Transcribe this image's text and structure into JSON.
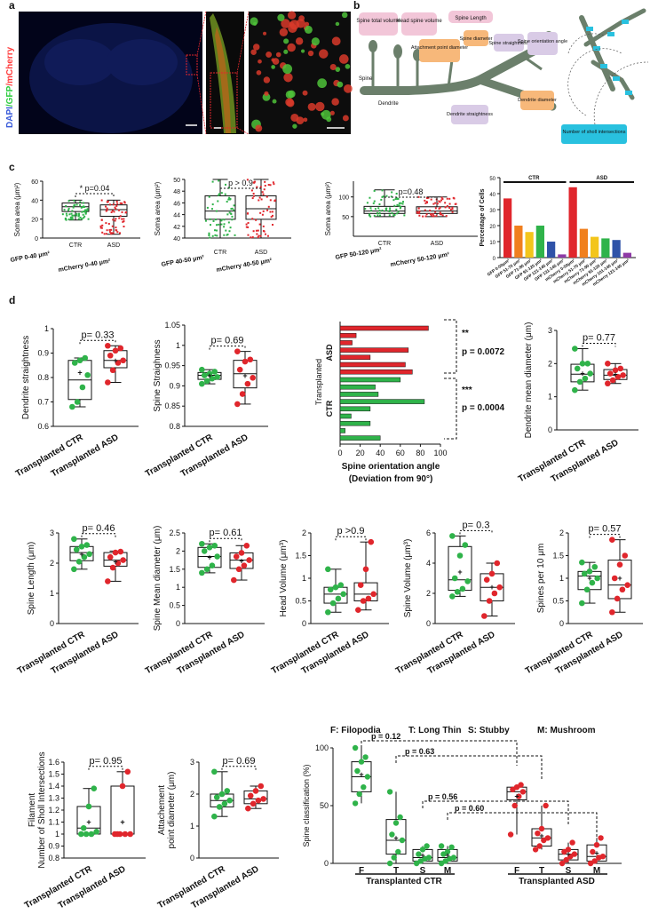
{
  "panel_labels": [
    "a",
    "b",
    "c",
    "d"
  ],
  "panel_a": {
    "channel_label": {
      "dapi": "DAPI",
      "gfp": "/GFP",
      "mcherry": "/mCherry"
    },
    "colors": {
      "dapi": "#3a5bd9",
      "gfp": "#2ecc40",
      "mcherry": "#ff3b3b"
    }
  },
  "panel_b": {
    "labels": {
      "spine_total_volume": "Spine total volume",
      "head_spine_volume": "Head spine volume",
      "spine_length": "Spine Length",
      "attachment_point_diameter": "Attachment point diameter",
      "spine_diameter": "Spine diameter",
      "spine_straightness": "Spine straightness",
      "spine_orientation_angle": "Spine orientation angle",
      "spine": "Spine",
      "dendrite": "Dendrite",
      "dendrite_diameter": "Dendrite diameter",
      "dendrite_straightness": "Dendrite straightness",
      "sholl": "Number of sholl intersections"
    },
    "colors": {
      "pink": "#f2c6d8",
      "purple": "#d9cbe6",
      "orange": "#f7b87a",
      "cyan": "#29c1df",
      "dendrite": "#6b7f6b"
    }
  },
  "colors": {
    "ctr": "#2fb34a",
    "asd": "#e0262c",
    "filopodia": "#8e3aa6",
    "longthin": "#2f52a8",
    "stubby": "#e0262c",
    "mushroom": "#2fb34a"
  },
  "chart_data": [
    {
      "id": "c1",
      "type": "box",
      "ylabel": "Soma area (μm²)",
      "ylim": [
        0,
        60
      ],
      "yticks": [
        0,
        20,
        40,
        60
      ],
      "categories": [
        "CTR",
        "ASD"
      ],
      "xlabels": [
        "GFP 0-40 μm²",
        "mCherry  0-40 μm²"
      ],
      "pvalue": "* p=0.04",
      "boxes": [
        {
          "q1": 28,
          "med": 33,
          "q3": 37,
          "min": 19,
          "max": 40,
          "mean": null
        },
        {
          "q1": 23,
          "med": 30,
          "q3": 35,
          "min": 4,
          "max": 40,
          "mean": null
        }
      ]
    },
    {
      "id": "c2",
      "type": "box",
      "ylabel": "Soma area (μm²)",
      "ylim": [
        40,
        50
      ],
      "yticks": [
        40,
        42,
        44,
        46,
        48,
        50
      ],
      "categories": [
        "CTR",
        "ASD"
      ],
      "xlabels": [
        "GFP 40-50 μm²",
        "mCherry 40-50 μm²"
      ],
      "pvalue": "p > 0.9",
      "boxes": [
        {
          "q1": 43.2,
          "med": 44.6,
          "q3": 47.2,
          "min": 40,
          "max": 50,
          "mean": null
        },
        {
          "q1": 43.2,
          "med": 45,
          "q3": 47.2,
          "min": 40,
          "max": 50,
          "mean": null
        }
      ]
    },
    {
      "id": "c3",
      "type": "box",
      "ylabel": "Soma area (μm²)",
      "ylim": [
        0,
        140
      ],
      "yticks": [
        50,
        100
      ],
      "categories": [
        "CTR",
        "ASD"
      ],
      "xlabels": [
        "GFP 50-120 μm²",
        "mCherry 50-120 μm²"
      ],
      "pvalue": "p=0.48",
      "boxes": [
        {
          "q1": 58,
          "med": 64,
          "q3": 76,
          "min": 50,
          "max": 118,
          "mean": null
        },
        {
          "q1": 58,
          "med": 64,
          "q3": 75,
          "min": 50,
          "max": 100,
          "mean": null
        }
      ]
    },
    {
      "id": "c4",
      "type": "bar",
      "ylabel": "Percentage of Cells",
      "ylim": [
        0,
        50
      ],
      "yticks": [
        0,
        10,
        20,
        30,
        40,
        50
      ],
      "groups": [
        "CTR",
        "ASD"
      ],
      "categories": [
        "GFP 0-50μm²",
        "GFP 51-70 μm²",
        "GFP 71-90 μm²",
        "GFP 91-120 μm²",
        "GFP 121-145 μm²",
        "GFP 131-145 μm²",
        "mCherry 0-50μm²",
        "mCherry 51-70 μm²",
        "mCherry 71-90 μm²",
        "mCherry 91-120 μm²",
        "mCherry 101-140 μm²",
        "mCherry 121-140 μm²"
      ],
      "values": [
        37,
        20,
        16,
        20,
        10,
        2,
        44,
        18,
        13,
        12,
        11,
        3
      ],
      "bar_colors": [
        "#e0262c",
        "#f07f1e",
        "#f3c51b",
        "#2fb34a",
        "#2f52a8",
        "#8e3aa6",
        "#e0262c",
        "#f07f1e",
        "#f3c51b",
        "#2fb34a",
        "#2f52a8",
        "#8e3aa6"
      ]
    },
    {
      "id": "d1",
      "type": "box",
      "ylabel": "Dendrite straightness",
      "ylim": [
        0.6,
        1.0
      ],
      "yticks": [
        0.6,
        0.7,
        0.8,
        0.9,
        1.0
      ],
      "categories": [
        "Transplanted CTR",
        "Transplanted ASD"
      ],
      "pvalue": "p= 0.33",
      "boxes": [
        {
          "q1": 0.71,
          "med": 0.79,
          "q3": 0.87,
          "min": 0.68,
          "max": 0.88,
          "mean": 0.82,
          "points": [
            0.68,
            0.7,
            0.76,
            0.81,
            0.86,
            0.87,
            0.88
          ]
        },
        {
          "q1": 0.84,
          "med": 0.87,
          "q3": 0.91,
          "min": 0.78,
          "max": 0.93,
          "mean": 0.87,
          "points": [
            0.78,
            0.83,
            0.86,
            0.87,
            0.89,
            0.91,
            0.92,
            0.93
          ]
        }
      ]
    },
    {
      "id": "d2",
      "type": "box",
      "ylabel": "Spine Straighness",
      "ylim": [
        0.8,
        1.05
      ],
      "yticks": [
        0.8,
        0.85,
        0.9,
        0.95,
        1.0,
        1.05
      ],
      "categories": [
        "Transplanted CTR",
        "Transplanted ASD"
      ],
      "pvalue": "p= 0.69",
      "boxes": [
        {
          "q1": 0.916,
          "med": 0.926,
          "q3": 0.933,
          "min": 0.905,
          "max": 0.94,
          "mean": 0.925,
          "points": [
            0.905,
            0.912,
            0.918,
            0.922,
            0.926,
            0.93,
            0.935,
            0.94
          ]
        },
        {
          "q1": 0.895,
          "med": 0.93,
          "q3": 0.963,
          "min": 0.855,
          "max": 0.985,
          "mean": 0.925,
          "points": [
            0.855,
            0.88,
            0.905,
            0.92,
            0.94,
            0.96,
            0.965,
            0.985
          ]
        }
      ]
    },
    {
      "id": "d3",
      "type": "hbar",
      "xlabel": "Spine orientation angle",
      "xlabel2": "(Deviation from 90°)",
      "ylabel": "Transplanted",
      "xlim": [
        0,
        100
      ],
      "xticks": [
        0,
        20,
        40,
        60,
        80,
        100
      ],
      "groups": [
        "ASD",
        "CTR"
      ],
      "asd_values": [
        88,
        16,
        12,
        68,
        30,
        65,
        72
      ],
      "ctr_values": [
        60,
        35,
        38,
        84,
        30,
        11,
        30,
        5,
        40
      ],
      "stars": [
        "**",
        "***"
      ],
      "pvalues": [
        "p = 0.0072",
        "p = 0.0004"
      ]
    },
    {
      "id": "d4",
      "type": "box",
      "ylabel": "Dendrite mean diameter (μm)",
      "ylim": [
        0,
        3
      ],
      "yticks": [
        0,
        1,
        2,
        3
      ],
      "categories": [
        "Transplanted CTR",
        "Transplanted ASD"
      ],
      "pvalue": "p= 0.77",
      "boxes": [
        {
          "q1": 1.45,
          "med": 1.68,
          "q3": 1.98,
          "min": 1.2,
          "max": 2.45,
          "mean": 1.7,
          "points": [
            1.2,
            1.45,
            1.55,
            1.7,
            1.85,
            2.0,
            2.0,
            2.45
          ]
        },
        {
          "q1": 1.52,
          "med": 1.65,
          "q3": 1.82,
          "min": 1.4,
          "max": 2.0,
          "mean": 1.68,
          "points": [
            1.4,
            1.5,
            1.6,
            1.65,
            1.7,
            1.8,
            1.85,
            2.0
          ]
        }
      ]
    },
    {
      "id": "e1",
      "type": "box",
      "ylabel": "Spine Length (μm)",
      "ylim": [
        0,
        3
      ],
      "yticks": [
        0,
        1,
        2,
        3
      ],
      "categories": [
        "Transplanted CTR",
        "Transplanted ASD"
      ],
      "pvalue": "p= 0.46",
      "boxes": [
        {
          "q1": 2.08,
          "med": 2.35,
          "q3": 2.55,
          "min": 1.8,
          "max": 2.8,
          "mean": 2.3,
          "points": [
            1.8,
            2.05,
            2.2,
            2.3,
            2.45,
            2.55,
            2.6,
            2.8
          ]
        },
        {
          "q1": 1.9,
          "med": 2.1,
          "q3": 2.35,
          "min": 1.4,
          "max": 2.4,
          "mean": 2.05,
          "points": [
            1.4,
            1.85,
            2.0,
            2.1,
            2.2,
            2.35,
            2.38
          ]
        }
      ]
    },
    {
      "id": "e2",
      "type": "box",
      "ylabel": "Spine Mean diameter (μm)",
      "ylim": [
        0,
        2.5
      ],
      "yticks": [
        0.0,
        0.5,
        1.0,
        1.5,
        2.0,
        2.5
      ],
      "categories": [
        "Transplanted CTR",
        "Transplanted ASD"
      ],
      "pvalue": "p= 0.61",
      "boxes": [
        {
          "q1": 1.55,
          "med": 1.85,
          "q3": 2.1,
          "min": 1.4,
          "max": 2.2,
          "mean": 1.82,
          "points": [
            1.4,
            1.5,
            1.6,
            1.85,
            2.0,
            2.1,
            2.15,
            2.2
          ]
        },
        {
          "q1": 1.52,
          "med": 1.75,
          "q3": 1.95,
          "min": 1.2,
          "max": 2.15,
          "mean": 1.73,
          "points": [
            1.2,
            1.5,
            1.6,
            1.75,
            1.85,
            1.95,
            2.15
          ]
        }
      ]
    },
    {
      "id": "e3",
      "type": "box",
      "ylabel": "Head Volume (μm³)",
      "ylim": [
        0,
        2.0
      ],
      "yticks": [
        0.0,
        0.5,
        1.0,
        1.5,
        2.0
      ],
      "categories": [
        "Transplanted CTR",
        "Transplanted ASD"
      ],
      "pvalue": "p >0.9",
      "boxes": [
        {
          "q1": 0.45,
          "med": 0.65,
          "q3": 0.8,
          "min": 0.25,
          "max": 1.2,
          "mean": 0.65,
          "points": [
            0.25,
            0.45,
            0.55,
            0.65,
            0.75,
            0.8,
            0.85,
            1.2
          ]
        },
        {
          "q1": 0.5,
          "med": 0.65,
          "q3": 0.9,
          "min": 0.3,
          "max": 1.8,
          "mean": 0.8,
          "points": [
            0.3,
            0.5,
            0.55,
            0.65,
            0.85,
            1.2,
            1.8
          ]
        }
      ]
    },
    {
      "id": "e4",
      "type": "box",
      "ylabel": "Spine Volume (μm³)",
      "ylim": [
        0,
        6
      ],
      "yticks": [
        0,
        2,
        4,
        6
      ],
      "categories": [
        "Transplanted CTR",
        "Transplanted ASD"
      ],
      "pvalue": "p= 0.3",
      "boxes": [
        {
          "q1": 2.2,
          "med": 2.9,
          "q3": 5.1,
          "min": 1.8,
          "max": 5.8,
          "mean": 3.4,
          "points": [
            1.8,
            2.1,
            2.3,
            2.8,
            3.0,
            4.5,
            5.2,
            5.8
          ]
        },
        {
          "q1": 1.5,
          "med": 2.4,
          "q3": 3.3,
          "min": 0.5,
          "max": 4.0,
          "mean": 2.4,
          "points": [
            0.5,
            1.5,
            2.0,
            2.4,
            2.9,
            3.3,
            4.0
          ]
        }
      ]
    },
    {
      "id": "e5",
      "type": "box",
      "ylabel": "Spines per 10 μm",
      "ylim": [
        0,
        2.0
      ],
      "yticks": [
        0.0,
        0.5,
        1.0,
        1.5,
        2.0
      ],
      "categories": [
        "Transplanted CTR",
        "Transplanted ASD"
      ],
      "pvalue": "p= 0.57",
      "boxes": [
        {
          "q1": 0.75,
          "med": 1.05,
          "q3": 1.15,
          "min": 0.45,
          "max": 1.35,
          "mean": 1.0,
          "points": [
            0.45,
            0.75,
            0.9,
            1.0,
            1.1,
            1.15,
            1.25,
            1.35
          ]
        },
        {
          "q1": 0.55,
          "med": 0.85,
          "q3": 1.4,
          "min": 0.25,
          "max": 1.85,
          "mean": 1.0,
          "points": [
            0.25,
            0.55,
            0.75,
            0.85,
            1.0,
            1.3,
            1.5,
            1.85
          ]
        }
      ]
    },
    {
      "id": "f1",
      "type": "box",
      "ylabel": "Number of Sholl Intersections",
      "ylabel2": "Filament",
      "ylim": [
        0.8,
        1.6
      ],
      "yticks": [
        0.8,
        0.9,
        1.0,
        1.1,
        1.2,
        1.3,
        1.4,
        1.5,
        1.6
      ],
      "categories": [
        "Transplanted CTR",
        "Transplanted ASD"
      ],
      "pvalue": "p= 0.95",
      "boxes": [
        {
          "q1": 1.0,
          "med": 1.05,
          "q3": 1.23,
          "min": 1.0,
          "max": 1.38,
          "mean": 1.1,
          "points": [
            1.0,
            1.0,
            1.0,
            1.02,
            1.05,
            1.23,
            1.38
          ]
        },
        {
          "q1": 1.0,
          "med": 1.0,
          "q3": 1.4,
          "min": 1.0,
          "max": 1.52,
          "mean": 1.1,
          "points": [
            1.0,
            1.0,
            1.0,
            1.0,
            1.0,
            1.4,
            1.52
          ]
        }
      ]
    },
    {
      "id": "f2",
      "type": "box",
      "ylabel": "point diameter (μm)",
      "ylabel2": "Attachement",
      "ylim": [
        0,
        3
      ],
      "yticks": [
        0,
        1,
        2,
        3
      ],
      "categories": [
        "Transplanted CTR",
        "Transplanted ASD"
      ],
      "pvalue": "p= 0.69",
      "boxes": [
        {
          "q1": 1.6,
          "med": 1.8,
          "q3": 2.0,
          "min": 1.3,
          "max": 2.7,
          "mean": 1.85,
          "points": [
            1.3,
            1.6,
            1.7,
            1.8,
            1.9,
            2.0,
            2.1,
            2.7
          ]
        },
        {
          "q1": 1.7,
          "med": 1.85,
          "q3": 2.1,
          "min": 1.55,
          "max": 2.25,
          "mean": 1.88,
          "points": [
            1.55,
            1.7,
            1.8,
            1.85,
            1.95,
            2.1,
            2.25
          ]
        }
      ]
    },
    {
      "id": "f3",
      "type": "box",
      "ylabel": "Spine classification (%)",
      "ylim": [
        0,
        100
      ],
      "yticks": [
        0,
        50,
        100
      ],
      "groups": [
        "Transplanted CTR",
        "Transplanted ASD"
      ],
      "legend": {
        "F": "F: Filopodia",
        "T": "T: Long Thin",
        "S": "S: Stubby",
        "M": "M: Mushroom"
      },
      "categories": [
        "F",
        "T",
        "S",
        "M",
        "F",
        "T",
        "S",
        "M"
      ],
      "pvalues": [
        "p = 0.12",
        "p = 0.63",
        "p = 0.56",
        "p = 0.60"
      ],
      "boxes": [
        {
          "q1": 62,
          "med": 75,
          "q3": 88,
          "min": 52,
          "max": 100,
          "mean": 77,
          "points": [
            52,
            60,
            66,
            75,
            80,
            88,
            92,
            100
          ]
        },
        {
          "q1": 8,
          "med": 20,
          "q3": 38,
          "min": 0,
          "max": 62,
          "mean": 22,
          "points": [
            0,
            5,
            10,
            20,
            25,
            35,
            40,
            62
          ]
        },
        {
          "q1": 2,
          "med": 5,
          "q3": 12,
          "min": 0,
          "max": 15,
          "mean": 7,
          "points": [
            0,
            2,
            4,
            5,
            8,
            12,
            15
          ]
        },
        {
          "q1": 2,
          "med": 5,
          "q3": 12,
          "min": 0,
          "max": 15,
          "mean": 7,
          "points": [
            0,
            2,
            4,
            5,
            8,
            10,
            14,
            15
          ]
        },
        {
          "q1": 55,
          "med": 62,
          "q3": 66,
          "min": 25,
          "max": 68,
          "mean": 58,
          "points": [
            25,
            50,
            58,
            62,
            64,
            66,
            68
          ]
        },
        {
          "q1": 15,
          "med": 22,
          "q3": 30,
          "min": 12,
          "max": 50,
          "mean": 24,
          "points": [
            12,
            15,
            20,
            22,
            26,
            30,
            50
          ]
        },
        {
          "q1": 3,
          "med": 8,
          "q3": 12,
          "min": 0,
          "max": 18,
          "mean": 8,
          "points": [
            0,
            3,
            6,
            8,
            10,
            12,
            18
          ]
        },
        {
          "q1": 2,
          "med": 6,
          "q3": 16,
          "min": 0,
          "max": 22,
          "mean": 9,
          "points": [
            0,
            2,
            5,
            6,
            10,
            16,
            22
          ]
        }
      ]
    }
  ]
}
